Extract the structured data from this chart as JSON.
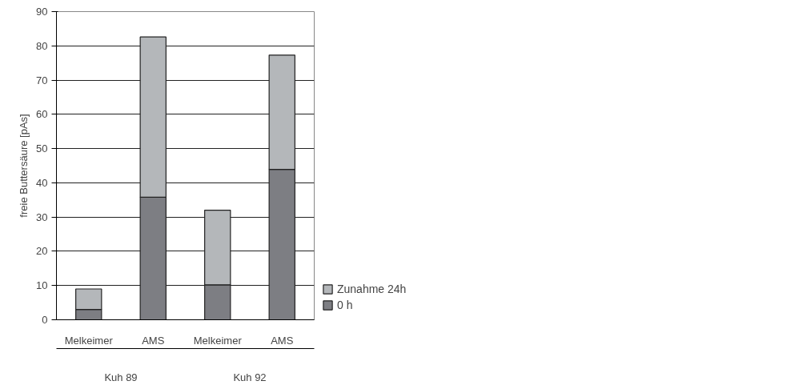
{
  "chart_data": {
    "type": "bar",
    "stacked": true,
    "ylabel": "freie Buttersäure [pAs]",
    "categories": [
      "Melkeimer",
      "AMS",
      "Melkeimer",
      "AMS"
    ],
    "series": [
      {
        "name": "0 h",
        "color": "#7d7e83",
        "values": [
          3.0,
          35.8,
          10.2,
          43.9
        ]
      },
      {
        "name": "Zunahme 24h",
        "color": "#b4b7ba",
        "values": [
          6.0,
          46.8,
          21.8,
          33.4
        ]
      }
    ],
    "annotations": [
      "Kuh 89",
      "Kuh 92"
    ],
    "ylim": [
      0,
      90
    ],
    "yticks": [
      0,
      10,
      20,
      30,
      40,
      50,
      60,
      70,
      80,
      90
    ],
    "grid": "y",
    "legend": "bottom right"
  }
}
